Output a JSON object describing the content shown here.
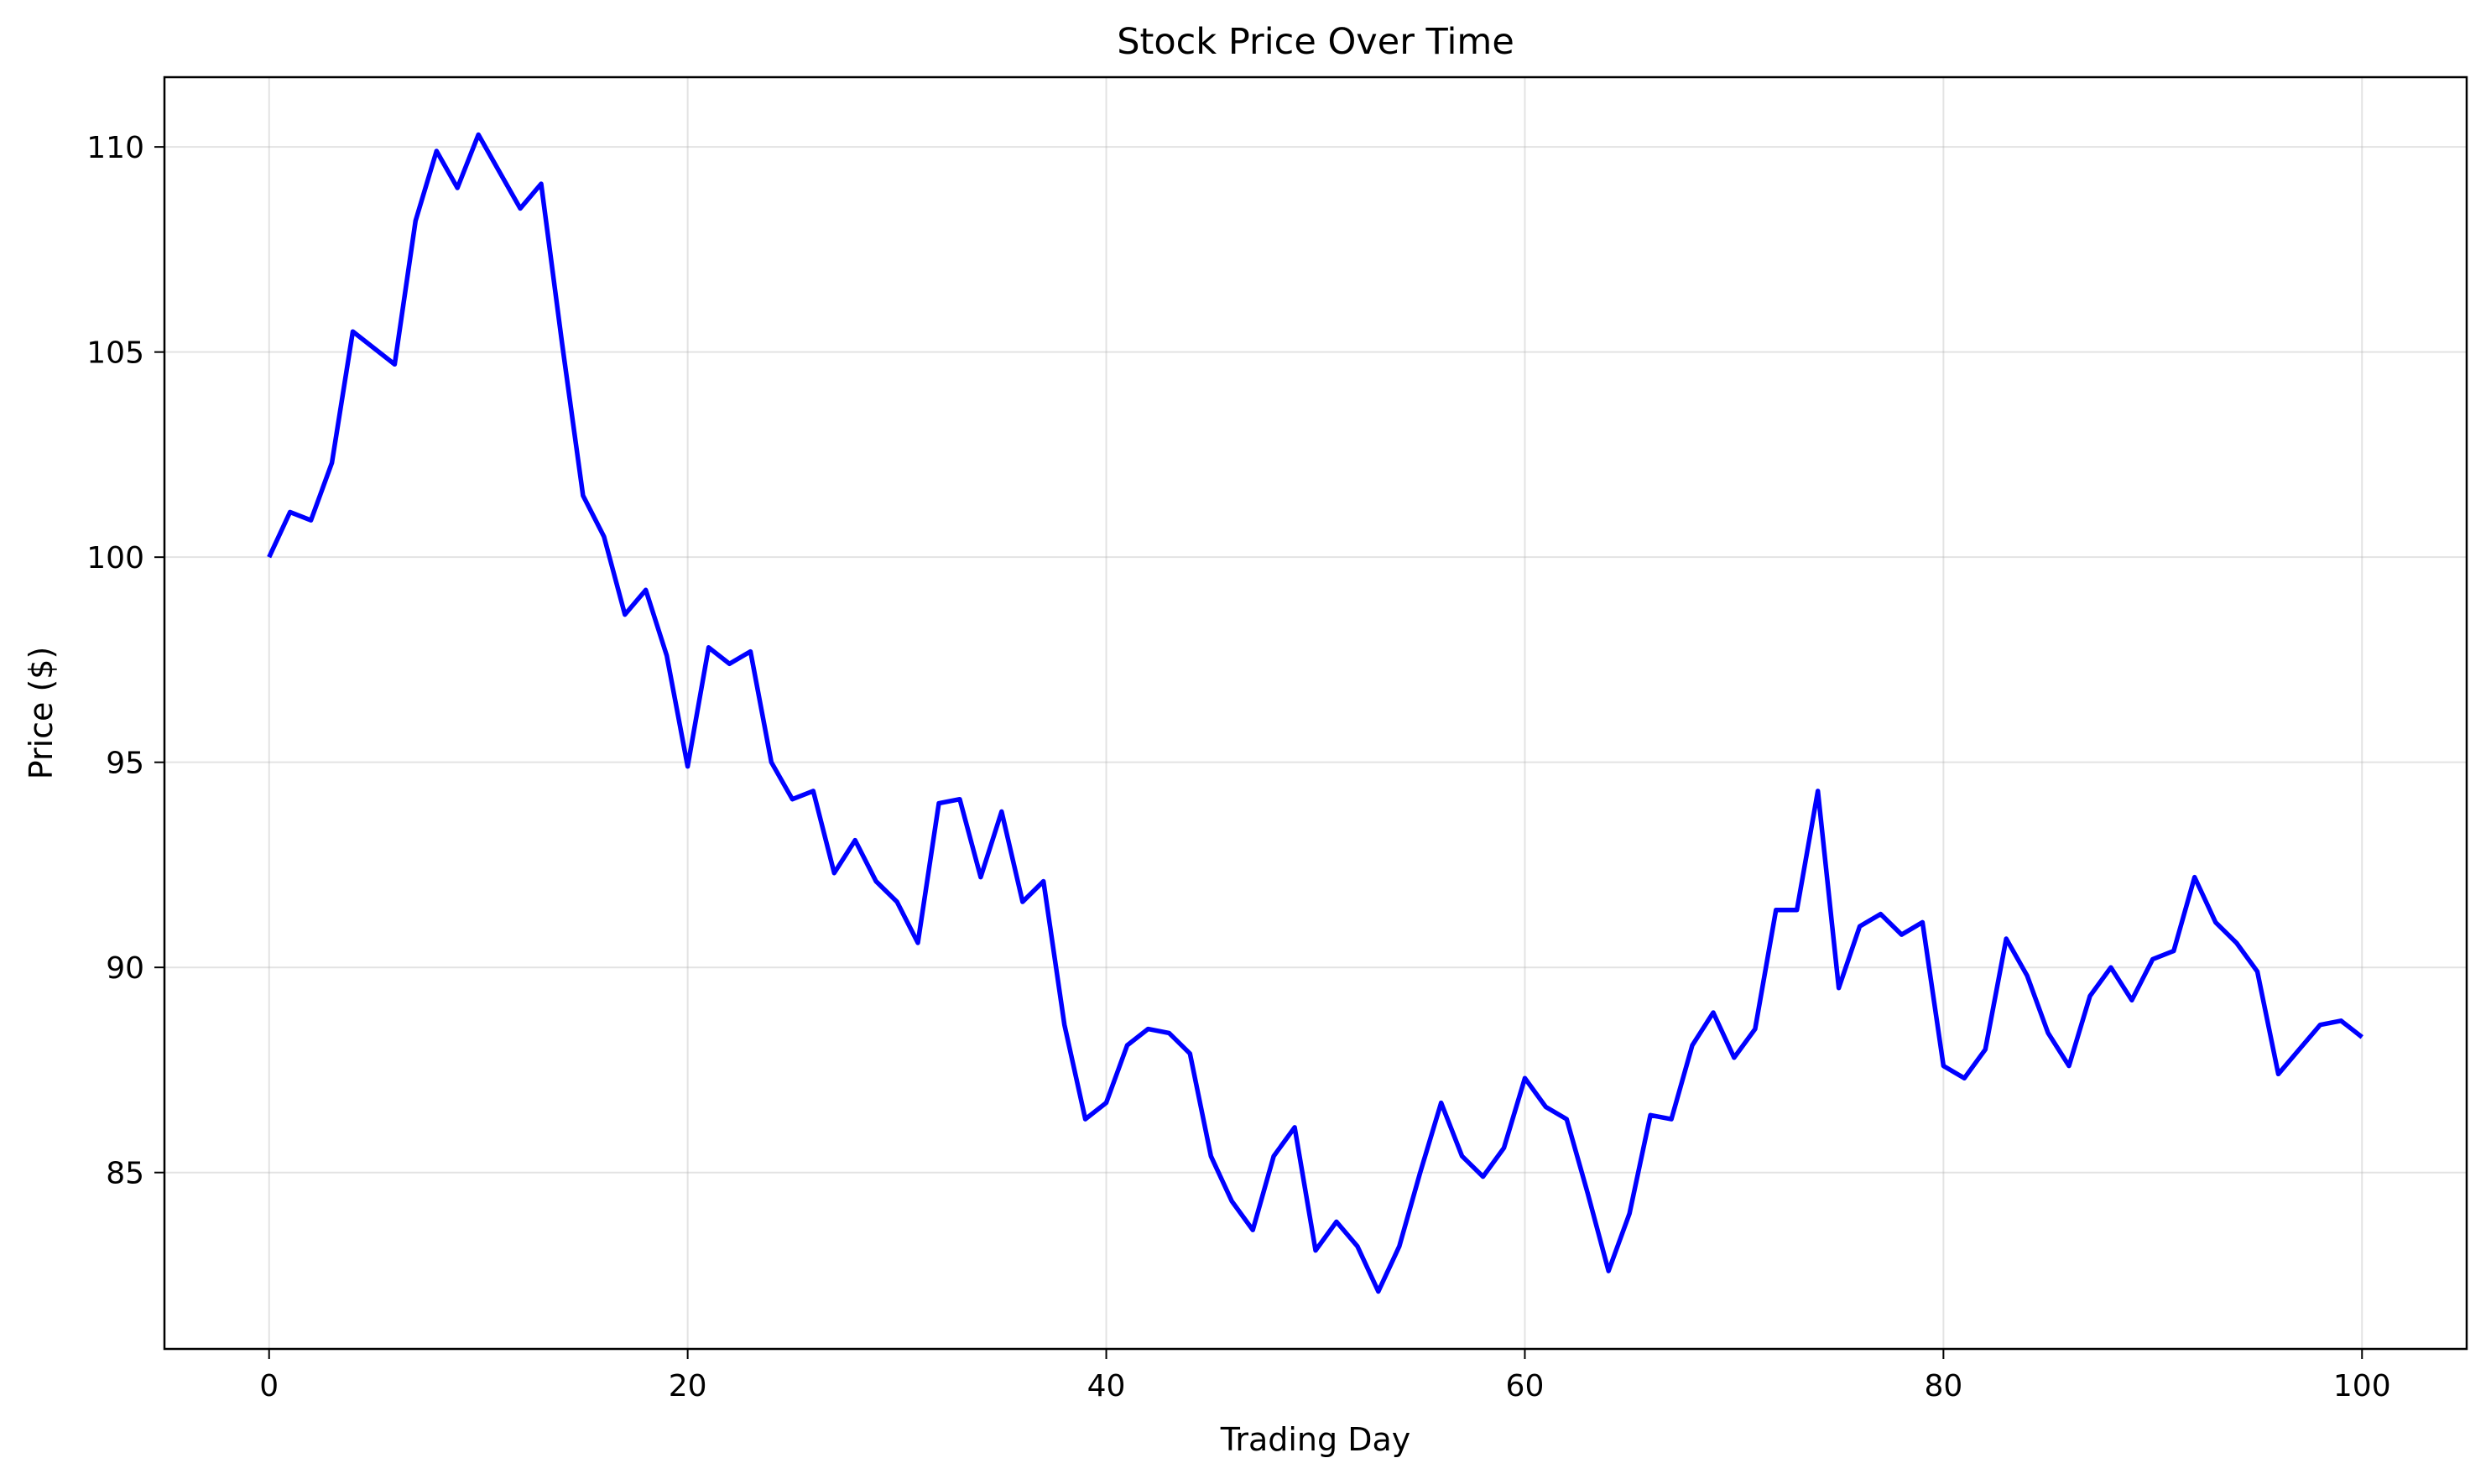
{
  "chart_data": {
    "type": "line",
    "title": "Stock Price Over Time",
    "xlabel": "Trading Day",
    "ylabel": "Price ($)",
    "xlim": [
      -5,
      105
    ],
    "ylim": [
      80.7,
      111.7
    ],
    "x_ticks": [
      0,
      20,
      40,
      60,
      80,
      100
    ],
    "y_ticks": [
      85,
      90,
      95,
      100,
      105,
      110
    ],
    "x_tick_labels": [
      "0",
      "20",
      "40",
      "60",
      "80",
      "100"
    ],
    "y_tick_labels": [
      "85",
      "90",
      "95",
      "100",
      "105",
      "110"
    ],
    "grid": true,
    "series": [
      {
        "color": "#0000ff",
        "x": [
          0,
          1,
          2,
          3,
          4,
          5,
          6,
          7,
          8,
          9,
          10,
          11,
          12,
          13,
          14,
          15,
          16,
          17,
          18,
          19,
          20,
          21,
          22,
          23,
          24,
          25,
          26,
          27,
          28,
          29,
          30,
          31,
          32,
          33,
          34,
          35,
          36,
          37,
          38,
          39,
          40,
          41,
          42,
          43,
          44,
          45,
          46,
          47,
          48,
          49,
          50,
          51,
          52,
          53,
          54,
          55,
          56,
          57,
          58,
          59,
          60,
          61,
          62,
          63,
          64,
          65,
          66,
          67,
          68,
          69,
          70,
          71,
          72,
          73,
          74,
          75,
          76,
          77,
          78,
          79,
          80,
          81,
          82,
          83,
          84,
          85,
          86,
          87,
          88,
          89,
          90,
          91,
          92,
          93,
          94,
          95,
          96,
          97,
          98,
          99,
          100
        ],
        "values": [
          100.0,
          101.1,
          100.9,
          102.3,
          105.5,
          105.1,
          104.7,
          108.2,
          109.9,
          109.0,
          110.3,
          109.4,
          108.5,
          109.1,
          105.2,
          101.5,
          100.5,
          98.6,
          99.2,
          97.6,
          94.9,
          97.8,
          97.4,
          97.7,
          95.0,
          94.1,
          94.3,
          92.3,
          93.1,
          92.1,
          91.6,
          90.6,
          94.0,
          94.1,
          92.2,
          93.8,
          91.6,
          92.1,
          88.6,
          86.3,
          86.7,
          88.1,
          88.5,
          88.4,
          87.9,
          85.4,
          84.3,
          83.6,
          85.4,
          86.1,
          83.1,
          83.8,
          83.2,
          82.1,
          83.2,
          85.0,
          86.7,
          85.4,
          84.9,
          85.6,
          87.3,
          86.6,
          86.3,
          84.5,
          82.6,
          84.0,
          86.4,
          86.3,
          88.1,
          88.9,
          87.8,
          88.5,
          91.4,
          91.4,
          94.3,
          89.5,
          91.0,
          91.3,
          90.8,
          91.1,
          87.6,
          87.3,
          88.0,
          90.7,
          89.8,
          88.4,
          87.6,
          89.3,
          90.0,
          89.2,
          90.2,
          90.4,
          92.2,
          91.1,
          90.6,
          89.9,
          87.4,
          88.0,
          88.6,
          88.7,
          88.3
        ]
      }
    ]
  }
}
